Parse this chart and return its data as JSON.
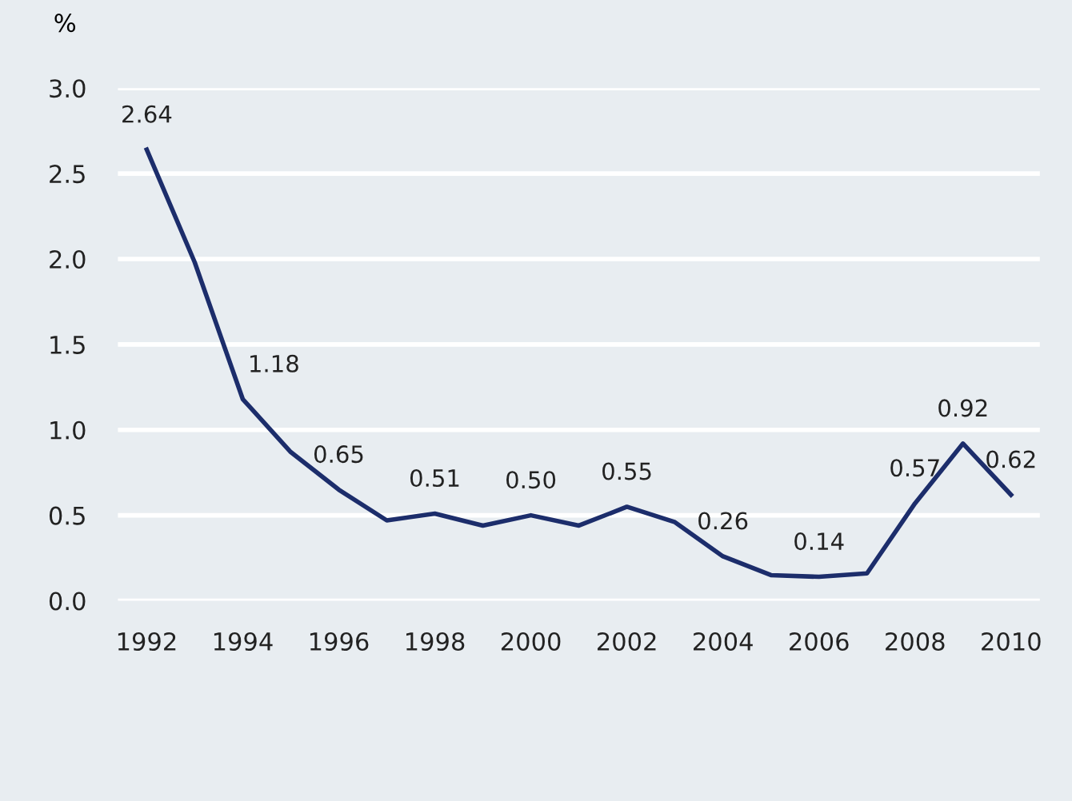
{
  "chart_data": {
    "type": "line",
    "ylabel": "%",
    "x": [
      1992,
      1993,
      1994,
      1995,
      1996,
      1997,
      1998,
      1999,
      2000,
      2001,
      2002,
      2003,
      2004,
      2005,
      2006,
      2007,
      2008,
      2009,
      2010
    ],
    "series": [
      {
        "color": "#1c2d6b",
        "values": [
          2.64,
          1.98,
          1.18,
          0.87,
          0.65,
          0.47,
          0.51,
          0.44,
          0.5,
          0.44,
          0.55,
          0.46,
          0.26,
          0.15,
          0.14,
          0.16,
          0.57,
          0.92,
          0.62
        ],
        "value_labels": [
          "2.64",
          null,
          "1.18",
          null,
          "0.65",
          null,
          "0.51",
          null,
          "0.50",
          null,
          "0.55",
          null,
          "0.26",
          null,
          "0.14",
          null,
          "0.57",
          "0.92",
          "0.62"
        ]
      }
    ],
    "xlim": [
      1991.4,
      2010.6
    ],
    "xticks": [
      1992,
      1994,
      1996,
      1998,
      2000,
      2002,
      2004,
      2006,
      2008,
      2010
    ],
    "ylim": [
      0,
      3
    ],
    "yticks": [
      {
        "value": 0,
        "label": "0.0"
      },
      {
        "value": 0.5,
        "label": "0.5"
      },
      {
        "value": 1,
        "label": "1.0"
      },
      {
        "value": 1.5,
        "label": "1.5"
      },
      {
        "value": 2,
        "label": "2.0"
      },
      {
        "value": 2.5,
        "label": "2.5"
      },
      {
        "value": 3,
        "label": "3.0"
      }
    ],
    "grid": "y",
    "marker": "none",
    "line_style": "solid",
    "legend": false
  }
}
